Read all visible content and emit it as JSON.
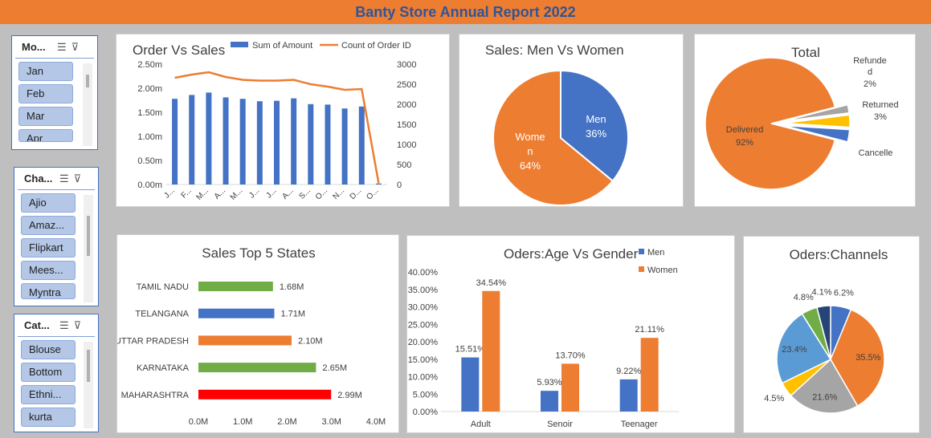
{
  "header": {
    "title": "Banty Store Annual Report 2022"
  },
  "slicers": [
    {
      "title": "Mo...",
      "items": [
        "Jan",
        "Feb",
        "Mar",
        "Apr"
      ]
    },
    {
      "title": "Cha...",
      "items": [
        "Ajio",
        "Amaz...",
        "Flipkart",
        "Mees...",
        "Myntra"
      ]
    },
    {
      "title": "Cat...",
      "items": [
        "Blouse",
        "Bottom",
        "Ethni...",
        "kurta"
      ]
    }
  ],
  "chart_data": [
    {
      "id": "order-vs-sales",
      "type": "bar+line",
      "title": "Order  Vs Sales",
      "categories": [
        "J...",
        "F...",
        "M...",
        "A...",
        "M...",
        "J...",
        "J...",
        "A...",
        "S...",
        "O...",
        "N...",
        "D...",
        "O..."
      ],
      "series": [
        {
          "name": "Sum of Amount",
          "axis": "left",
          "type": "bar",
          "color": "#4472c4",
          "values": [
            1.78,
            1.86,
            1.91,
            1.81,
            1.78,
            1.73,
            1.74,
            1.79,
            1.67,
            1.66,
            1.58,
            1.62,
            0.02
          ]
        },
        {
          "name": "Count of Order ID",
          "axis": "right",
          "type": "line",
          "color": "#ed7d31",
          "values": [
            2660,
            2740,
            2800,
            2680,
            2610,
            2590,
            2590,
            2610,
            2500,
            2440,
            2360,
            2380,
            30
          ]
        }
      ],
      "left_axis": {
        "ticks": [
          "0.00m",
          "0.50m",
          "1.00m",
          "1.50m",
          "2.00m",
          "2.50m"
        ],
        "ylim": [
          0,
          2.5
        ]
      },
      "right_axis": {
        "ticks": [
          "0",
          "500",
          "1000",
          "1500",
          "2000",
          "2500",
          "3000"
        ],
        "ylim": [
          0,
          3000
        ]
      },
      "legend": "top"
    },
    {
      "id": "men-vs-women",
      "type": "pie",
      "title": "Sales: Men Vs Women",
      "slices": [
        {
          "label": "Men",
          "value": 36,
          "pct_label": "36%",
          "color": "#4472c4"
        },
        {
          "label": "Wome n",
          "value": 64,
          "pct_label": "64%",
          "color": "#ed7d31"
        }
      ]
    },
    {
      "id": "total-status",
      "type": "pie",
      "title": "Total",
      "slices": [
        {
          "label": "Delivered",
          "value": 92,
          "pct_label": "92%",
          "color": "#ed7d31"
        },
        {
          "label": "Refunde d",
          "value": 2,
          "pct_label": "2%",
          "color": "#a5a5a5"
        },
        {
          "label": "Returned",
          "value": 3,
          "pct_label": "3%",
          "color": "#ffc000"
        },
        {
          "label": "Cancelle",
          "value": 3,
          "pct_label": "",
          "color": "#4472c4"
        }
      ]
    },
    {
      "id": "top-states",
      "type": "bar",
      "orientation": "horizontal",
      "title": "Sales Top 5 States",
      "categories": [
        "TAMIL NADU",
        "TELANGANA",
        "UTTAR PRADESH",
        "KARNATAKA",
        "MAHARASHTRA"
      ],
      "values": [
        1.68,
        1.71,
        2.1,
        2.65,
        2.99
      ],
      "value_labels": [
        "1.68M",
        "1.71M",
        "2.10M",
        "2.65M",
        "2.99M"
      ],
      "colors": [
        "#70ad47",
        "#4472c4",
        "#ed7d31",
        "#70ad47",
        "#ff0000"
      ],
      "x_ticks": [
        "0.0M",
        "1.0M",
        "2.0M",
        "3.0M",
        "4.0M"
      ],
      "xlim": [
        0,
        4
      ]
    },
    {
      "id": "age-vs-gender",
      "type": "bar",
      "title": "Oders:Age Vs Gender",
      "categories": [
        "Adult",
        "Senoir",
        "Teenager"
      ],
      "series": [
        {
          "name": "Men",
          "color": "#4472c4",
          "values": [
            15.51,
            5.93,
            9.22
          ],
          "labels": [
            "15.51%",
            "5.93%",
            "9.22%"
          ]
        },
        {
          "name": "Women",
          "color": "#ed7d31",
          "values": [
            34.54,
            13.7,
            21.11
          ],
          "labels": [
            "34.54%",
            "13.70%",
            "21.11%"
          ]
        }
      ],
      "y_ticks": [
        "0.00%",
        "5.00%",
        "10.00%",
        "15.00%",
        "20.00%",
        "25.00%",
        "30.00%",
        "35.00%",
        "40.00%"
      ],
      "ylim": [
        0,
        40
      ],
      "legend": "top-right"
    },
    {
      "id": "channels",
      "type": "pie",
      "title": "Oders:Channels",
      "slices": [
        {
          "value": 6.2,
          "pct_label": "6.2%",
          "color": "#4472c4"
        },
        {
          "value": 35.5,
          "pct_label": "35.5%",
          "color": "#ed7d31"
        },
        {
          "value": 21.6,
          "pct_label": "21.6%",
          "color": "#a5a5a5"
        },
        {
          "value": 4.5,
          "pct_label": "4.5%",
          "color": "#ffc000"
        },
        {
          "value": 23.4,
          "pct_label": "23.4%",
          "color": "#5b9bd5"
        },
        {
          "value": 4.8,
          "pct_label": "4.8%",
          "color": "#70ad47"
        },
        {
          "value": 4.1,
          "pct_label": "4.1%",
          "color": "#264478"
        }
      ]
    }
  ]
}
